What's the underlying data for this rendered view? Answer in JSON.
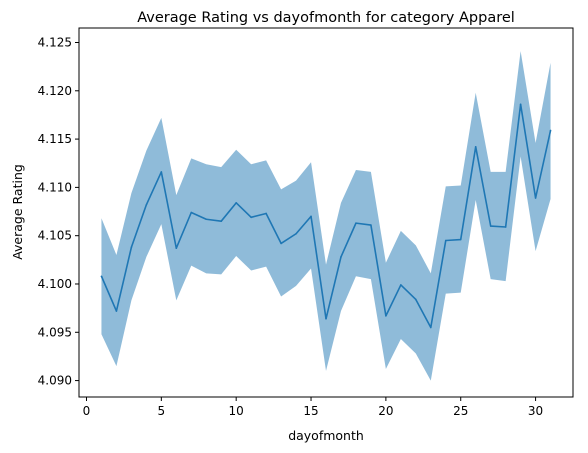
{
  "chart_data": {
    "type": "line",
    "title": "Average Rating vs dayofmonth for category Apparel",
    "xlabel": "dayofmonth",
    "ylabel": "Average Rating",
    "xlim": [
      -0.5,
      32.5
    ],
    "ylim": [
      4.0883,
      4.1265
    ],
    "xticks": [
      0,
      5,
      10,
      15,
      20,
      25,
      30
    ],
    "yticks": [
      4.09,
      4.095,
      4.1,
      4.105,
      4.11,
      4.115,
      4.12,
      4.125
    ],
    "ytick_labels": [
      "4.090",
      "4.095",
      "4.100",
      "4.105",
      "4.110",
      "4.115",
      "4.120",
      "4.125"
    ],
    "grid": false,
    "legend": "none",
    "colors": {
      "line": "#1f77b4",
      "band": "#1f77b4"
    },
    "series": [
      {
        "x": [
          1,
          2,
          3,
          4,
          5,
          6,
          7,
          8,
          9,
          10,
          11,
          12,
          13,
          14,
          15,
          16,
          17,
          18,
          19,
          20,
          21,
          22,
          23,
          24,
          25,
          26,
          27,
          28,
          29,
          30,
          31
        ],
        "mean": [
          4.1008,
          4.0972,
          4.1038,
          4.1082,
          4.1116,
          4.1037,
          4.1074,
          4.1067,
          4.1065,
          4.1084,
          4.1069,
          4.1073,
          4.1042,
          4.1052,
          4.107,
          4.0964,
          4.1028,
          4.1063,
          4.1061,
          4.0967,
          4.0999,
          4.0984,
          4.0955,
          4.1045,
          4.1046,
          4.1142,
          4.106,
          4.1059,
          4.1186,
          4.1089,
          4.1159
        ],
        "lower": [
          4.0948,
          4.0915,
          4.0983,
          4.1028,
          4.1062,
          4.0983,
          4.1019,
          4.1011,
          4.101,
          4.1029,
          4.1014,
          4.1018,
          4.0987,
          4.0998,
          4.1016,
          4.091,
          4.0972,
          4.1008,
          4.1005,
          4.0912,
          4.0943,
          4.0928,
          4.09,
          4.099,
          4.0991,
          4.1087,
          4.1005,
          4.1003,
          4.1132,
          4.1034,
          4.1088
        ],
        "upper": [
          4.1068,
          4.103,
          4.1094,
          4.1138,
          4.1172,
          4.1092,
          4.113,
          4.1124,
          4.1121,
          4.1139,
          4.1124,
          4.1128,
          4.1098,
          4.1107,
          4.1126,
          4.102,
          4.1084,
          4.1118,
          4.1116,
          4.1022,
          4.1055,
          4.104,
          4.1011,
          4.1101,
          4.1102,
          4.1198,
          4.1116,
          4.1116,
          4.1241,
          4.1146,
          4.1229
        ]
      }
    ]
  }
}
